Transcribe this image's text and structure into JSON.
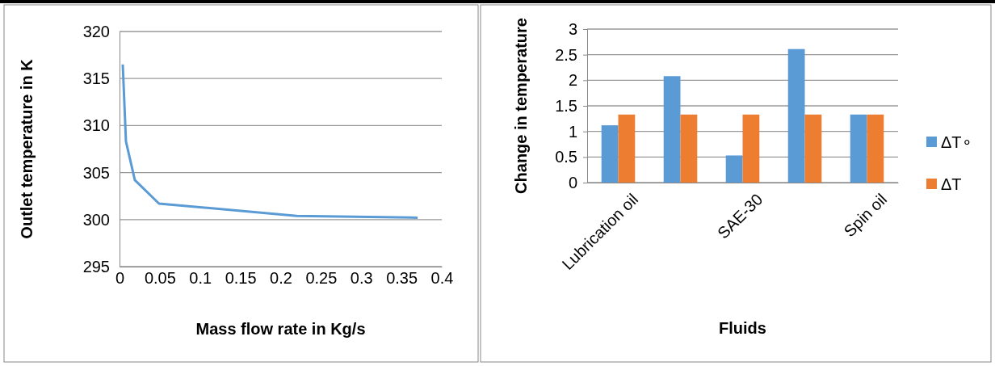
{
  "chart_data": [
    {
      "type": "line",
      "xlabel": "Mass flow rate in Kg/s",
      "ylabel": "Outlet temperature in K",
      "x": [
        0.004,
        0.008,
        0.019,
        0.049,
        0.22,
        0.37
      ],
      "series": [
        {
          "color": "#5b9bd5",
          "values": [
            316.5,
            308.3,
            304.2,
            301.7,
            300.4,
            300.2
          ]
        }
      ],
      "xlim": [
        0,
        0.4
      ],
      "xticks": [
        0,
        0.05,
        0.1,
        0.15,
        0.2,
        0.25,
        0.3,
        0.35,
        0.4
      ],
      "ylim": [
        295,
        320
      ],
      "yticks": [
        295,
        300,
        305,
        310,
        315,
        320
      ],
      "grid": "y"
    },
    {
      "type": "bar",
      "xlabel": "Fluids",
      "ylabel": "Change in temperature",
      "categories": [
        "Lubrication oil",
        null,
        "SAE-30",
        null,
        "Spin oil"
      ],
      "series": [
        {
          "name": "ΔT∘",
          "color": "#5b9bd5",
          "values": [
            1.12,
            2.08,
            0.53,
            2.61,
            1.33
          ]
        },
        {
          "name": "ΔT",
          "color": "#ed7d31",
          "values": [
            1.33,
            1.33,
            1.33,
            1.33,
            1.33
          ]
        }
      ],
      "ylim": [
        0,
        3
      ],
      "yticks": [
        0,
        0.5,
        1,
        1.5,
        2,
        2.5,
        3
      ],
      "grid": "y",
      "legend": "right"
    }
  ]
}
